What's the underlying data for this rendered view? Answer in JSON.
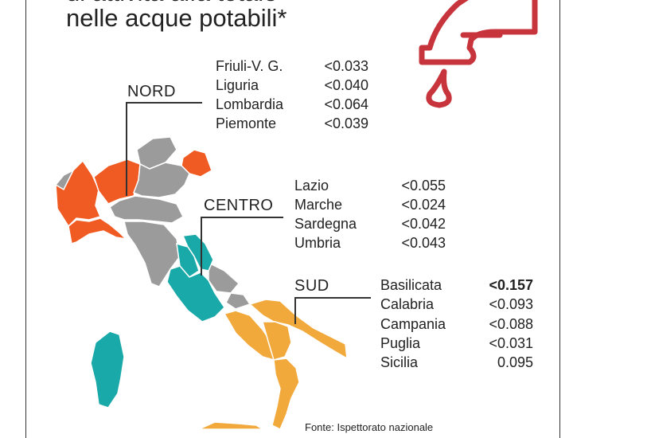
{
  "title": {
    "line1": "di attività alfa totale",
    "line2": "nelle acque potabili*"
  },
  "regions": {
    "nord": {
      "label": "NORD",
      "color": "#f05a23",
      "items": [
        {
          "name": "Friuli-V. G.",
          "value": "<0.033"
        },
        {
          "name": "Liguria",
          "value": "<0.040"
        },
        {
          "name": "Lombardia",
          "value": "<0.064"
        },
        {
          "name": "Piemonte",
          "value": "<0.039"
        }
      ]
    },
    "centro": {
      "label": "CENTRO",
      "color": "#1aa9a9",
      "items": [
        {
          "name": "Lazio",
          "value": "<0.055"
        },
        {
          "name": "Marche",
          "value": "<0.024"
        },
        {
          "name": "Sardegna",
          "value": "<0.042"
        },
        {
          "name": "Umbria",
          "value": "<0.043"
        }
      ]
    },
    "sud": {
      "label": "SUD",
      "color": "#f2a93b",
      "items": [
        {
          "name": "Basilicata",
          "value": "<0.157",
          "bold": true
        },
        {
          "name": "Calabria",
          "value": "<0.093"
        },
        {
          "name": "Campania",
          "value": "<0.088"
        },
        {
          "name": "Puglia",
          "value": "<0.031"
        },
        {
          "name": "Sicilia",
          "value": "0.095"
        }
      ]
    }
  },
  "other_color": "#9b9b9b",
  "icon": {
    "name": "water-tap-icon",
    "color": "#c8343c"
  },
  "source": "Fonte: Ispettorato nazionale"
}
